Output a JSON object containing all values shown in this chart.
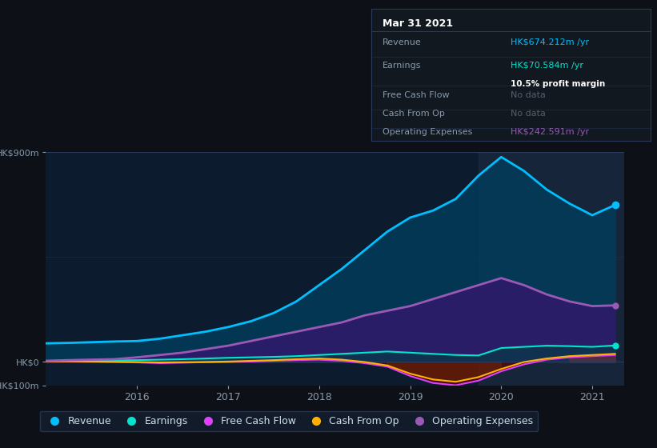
{
  "bg_color": "#0d1117",
  "plot_bg_color": "#0d1b2e",
  "title_box": {
    "date": "Mar 31 2021",
    "rows": [
      {
        "label": "Revenue",
        "value": "HK$674.212m /yr",
        "value_color": "#00bfff"
      },
      {
        "label": "Earnings",
        "value": "HK$70.584m /yr",
        "value_color": "#00e5cc",
        "sub": "10.5% profit margin"
      },
      {
        "label": "Free Cash Flow",
        "value": "No data",
        "value_color": "#555e6e"
      },
      {
        "label": "Cash From Op",
        "value": "No data",
        "value_color": "#555e6e"
      },
      {
        "label": "Operating Expenses",
        "value": "HK$242.591m /yr",
        "value_color": "#9b59b6"
      }
    ]
  },
  "x": [
    2015.0,
    2015.25,
    2015.5,
    2015.75,
    2016.0,
    2016.25,
    2016.5,
    2016.75,
    2017.0,
    2017.25,
    2017.5,
    2017.75,
    2018.0,
    2018.25,
    2018.5,
    2018.75,
    2019.0,
    2019.25,
    2019.5,
    2019.75,
    2020.0,
    2020.25,
    2020.5,
    2020.75,
    2021.0,
    2021.25
  ],
  "revenue": [
    80,
    82,
    85,
    88,
    90,
    100,
    115,
    130,
    150,
    175,
    210,
    260,
    330,
    400,
    480,
    560,
    620,
    650,
    700,
    800,
    880,
    820,
    740,
    680,
    630,
    674
  ],
  "earnings": [
    5,
    6,
    6,
    7,
    8,
    10,
    12,
    15,
    18,
    20,
    22,
    25,
    30,
    35,
    40,
    45,
    40,
    35,
    30,
    28,
    60,
    65,
    70,
    68,
    65,
    71
  ],
  "free_cash_flow": [
    2,
    2,
    1,
    0,
    -2,
    -5,
    -3,
    -1,
    0,
    2,
    5,
    8,
    10,
    5,
    -5,
    -20,
    -60,
    -90,
    -100,
    -80,
    -40,
    -10,
    10,
    20,
    25,
    30
  ],
  "cash_from_op": [
    3,
    3,
    2,
    1,
    0,
    -2,
    -1,
    0,
    2,
    5,
    8,
    12,
    15,
    10,
    0,
    -15,
    -50,
    -75,
    -85,
    -65,
    -30,
    0,
    15,
    25,
    30,
    35
  ],
  "operating_expenses": [
    5,
    8,
    10,
    12,
    20,
    30,
    40,
    55,
    70,
    90,
    110,
    130,
    150,
    170,
    200,
    220,
    240,
    270,
    300,
    330,
    360,
    330,
    290,
    260,
    240,
    243
  ],
  "revenue_color": "#00bfff",
  "earnings_color": "#00e5cc",
  "fcf_color": "#e040fb",
  "cfo_color": "#ffb300",
  "opex_color": "#9b59b6",
  "revenue_fill": "#003d5c",
  "earnings_fill": "#004040",
  "opex_fill": "#2d1b69",
  "highlight_start": 2019.75,
  "highlight_end": 2021.35,
  "highlight_color": "#1a2a40",
  "ylim": [
    -100,
    900
  ],
  "xlim": [
    2015.0,
    2021.35
  ],
  "xtick_years": [
    2016,
    2017,
    2018,
    2019,
    2020,
    2021
  ],
  "legend_items": [
    {
      "label": "Revenue",
      "color": "#00bfff"
    },
    {
      "label": "Earnings",
      "color": "#00e5cc"
    },
    {
      "label": "Free Cash Flow",
      "color": "#e040fb"
    },
    {
      "label": "Cash From Op",
      "color": "#ffb300"
    },
    {
      "label": "Operating Expenses",
      "color": "#9b59b6"
    }
  ]
}
